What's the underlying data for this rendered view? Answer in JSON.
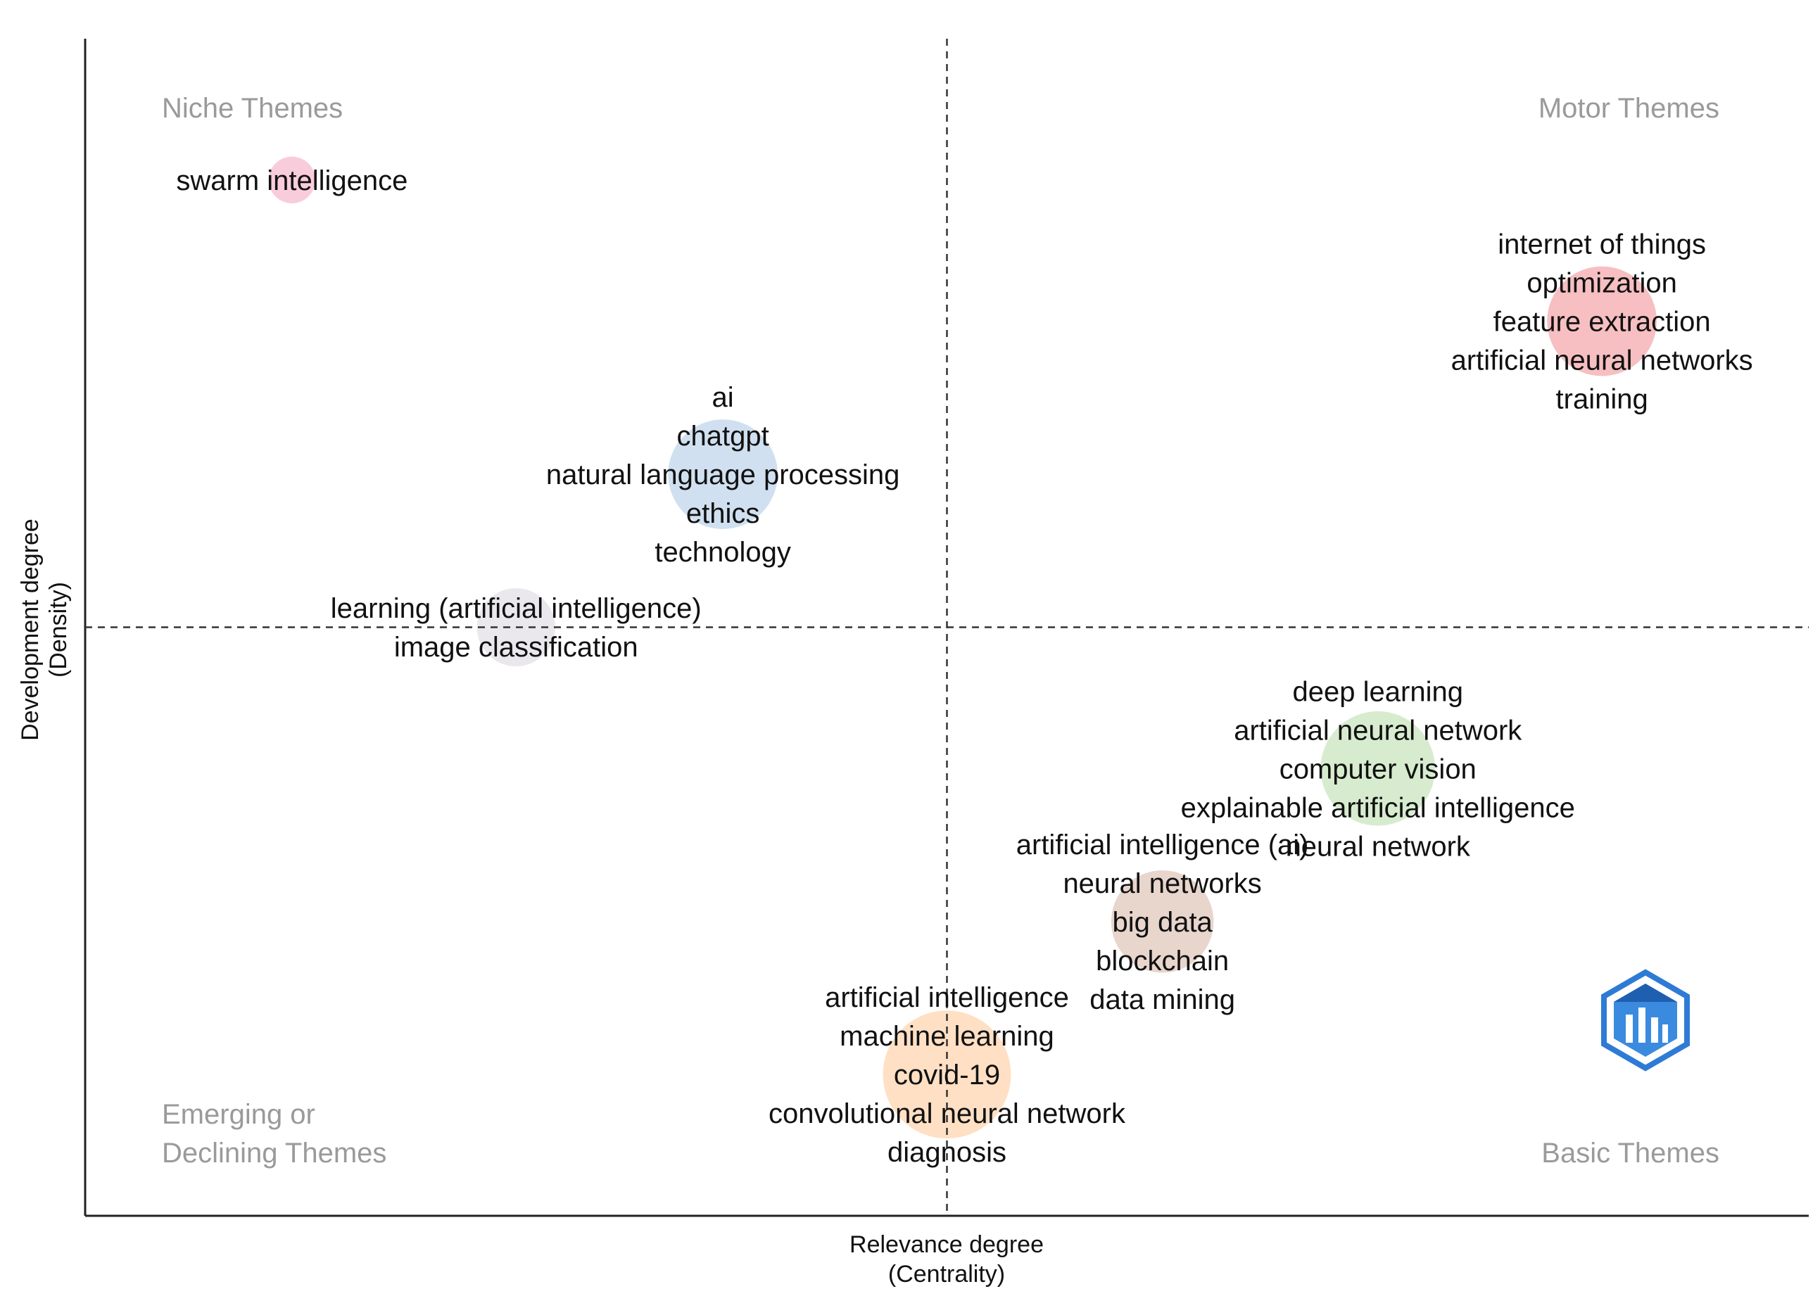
{
  "chart_data": {
    "type": "scatter",
    "subtype": "thematic-map",
    "x_axis": {
      "label_line1": "Relevance degree",
      "label_line2": "(Centrality)"
    },
    "y_axis": {
      "label_line1": "Development degree",
      "label_line2": "(Density)"
    },
    "xlim": [
      0,
      1
    ],
    "ylim": [
      0,
      1
    ],
    "quadrant_divider": {
      "x": 0.5,
      "y": 0.5
    },
    "quadrant_labels": {
      "niche": [
        "Niche Themes"
      ],
      "motor": [
        "Motor Themes"
      ],
      "emerging": [
        "Emerging or",
        "Declining Themes"
      ],
      "basic": [
        "Basic Themes"
      ]
    },
    "clusters": [
      {
        "name": "swarm intelligence",
        "x": 0.12,
        "y": 0.88,
        "size": 0.1,
        "color": "#f4a3c0",
        "labels": [
          "swarm intelligence"
        ]
      },
      {
        "name": "internet of things",
        "x": 0.88,
        "y": 0.76,
        "size": 0.55,
        "color": "#f08a8f",
        "labels": [
          "internet of things",
          "optimization",
          "feature extraction",
          "artificial neural networks",
          "training"
        ]
      },
      {
        "name": "ai",
        "x": 0.37,
        "y": 0.63,
        "size": 0.55,
        "color": "#a9c6e3",
        "labels": [
          "ai",
          "chatgpt",
          "natural language processing",
          "ethics",
          "technology"
        ]
      },
      {
        "name": "learning (artificial intelligence)",
        "x": 0.25,
        "y": 0.5,
        "size": 0.28,
        "color": "#d9d6dc",
        "labels": [
          "learning (artificial intelligence)",
          "image classification"
        ]
      },
      {
        "name": "deep learning",
        "x": 0.75,
        "y": 0.38,
        "size": 0.6,
        "color": "#b6dca7",
        "labels": [
          "deep learning",
          "artificial neural network",
          "computer vision",
          "explainable artificial intelligence",
          "neural network"
        ]
      },
      {
        "name": "artificial intelligence (ai)",
        "x": 0.625,
        "y": 0.25,
        "size": 0.48,
        "color": "#d6b3a3",
        "labels": [
          "artificial intelligence (ai)",
          "neural networks",
          "big data",
          "blockchain",
          "data mining"
        ]
      },
      {
        "name": "artificial intelligence",
        "x": 0.5,
        "y": 0.12,
        "size": 0.75,
        "color": "#ffc794",
        "labels": [
          "artificial intelligence",
          "machine learning",
          "covid-19",
          "convolutional neural network",
          "diagnosis"
        ]
      }
    ]
  },
  "logo": {
    "name": "bibliometrix-logo",
    "color": "#2e7bd6"
  }
}
